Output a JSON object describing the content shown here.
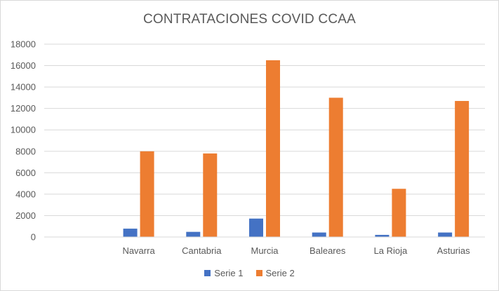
{
  "chart_data": {
    "type": "bar",
    "title": "CONTRATACIONES COVID CCAA",
    "xlabel": "",
    "ylabel": "",
    "categories": [
      "",
      "Navarra",
      "Cantabria",
      "Murcia",
      "Baleares",
      "La Rioja",
      "Asturias"
    ],
    "series": [
      {
        "name": "Serie 1",
        "color": "#4472c4",
        "values": [
          null,
          780,
          480,
          1720,
          420,
          200,
          420
        ]
      },
      {
        "name": "Serie 2",
        "color": "#ed7d31",
        "values": [
          null,
          8000,
          7800,
          16500,
          13000,
          4500,
          12700
        ]
      }
    ],
    "ylim": [
      0,
      18000
    ],
    "yticks": [
      0,
      2000,
      4000,
      6000,
      8000,
      10000,
      12000,
      14000,
      16000,
      18000
    ],
    "grid": true,
    "legend_position": "bottom"
  }
}
